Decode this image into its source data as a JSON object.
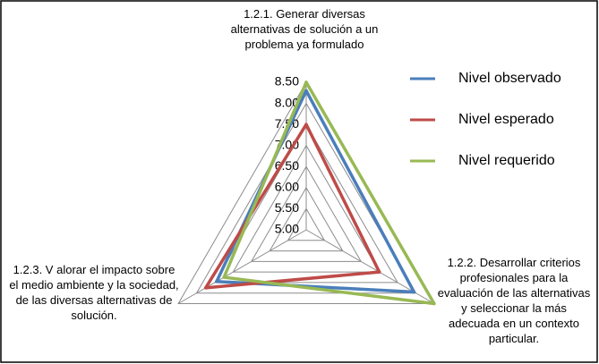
{
  "chart_data": {
    "type": "radar",
    "categories": [
      "1.2.1. Generar diversas alternativas de solución a un problema ya formulado",
      "1.2.2. Desarrollar criterios profesionales para la evaluación de las alternativas y seleccionar la más adecuada en un contexto particular.",
      "1.2.3. V alorar el impacto sobre el medio ambiente y la sociedad, de las diversas alternativas de solución."
    ],
    "series": [
      {
        "name": "Nivel observado",
        "color": "#4a7ebb",
        "values": [
          8.3,
          7.95,
          7.45
        ]
      },
      {
        "name": "Nivel esperado",
        "color": "#be4b48",
        "values": [
          7.5,
          7.0,
          7.75
        ]
      },
      {
        "name": "Nivel requerido",
        "color": "#98b954",
        "values": [
          8.5,
          8.5,
          7.25
        ]
      }
    ],
    "ylim": [
      5,
      8.5
    ],
    "yticks": [
      {
        "value": 5,
        "label": "5.00"
      },
      {
        "value": 5.5,
        "label": "5.50"
      },
      {
        "value": 6,
        "label": "6.00"
      },
      {
        "value": 6.5,
        "label": "6.50"
      },
      {
        "value": 7,
        "label": "7.00"
      },
      {
        "value": 7.5,
        "label": "7.50"
      },
      {
        "value": 8,
        "label": "8.00"
      },
      {
        "value": 8.5,
        "label": "8.50"
      }
    ],
    "grid": true,
    "legend": "right"
  }
}
